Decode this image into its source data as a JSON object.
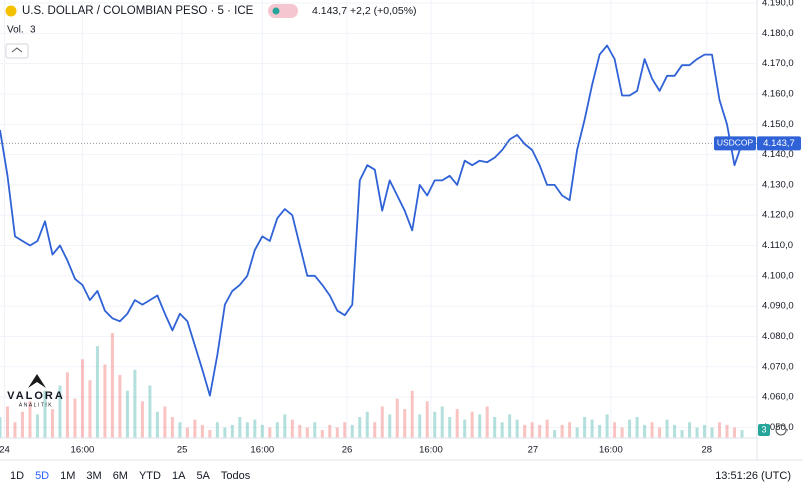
{
  "chart_data": {
    "type": "line",
    "title": "U.S. DOLLAR / COLOMBIAN PESO · 5 · ICE",
    "last": {
      "value": 4143.7,
      "label": "4.143,7"
    },
    "change": "+2,2 (+0,05%)",
    "series": [
      {
        "name": "USDCOP",
        "color": "#2f62d6",
        "values": [
          4148.1,
          4133,
          4113,
          4111.5,
          4110,
          4111.5,
          4118,
          4107,
          4110,
          4105,
          4099,
          4097,
          4092,
          4095,
          4088.5,
          4086,
          4085,
          4087.5,
          4092,
          4090.5,
          4092,
          4093.5,
          4087.5,
          4082,
          4087.5,
          4085,
          4077,
          4069,
          4060.5,
          4074,
          4090.5,
          4095,
          4097,
          4100,
          4108.5,
          4113,
          4111.5,
          4119,
          4122,
          4120,
          4110,
          4100,
          4100,
          4097,
          4093.5,
          4088.5,
          4087,
          4090.5,
          4131.5,
          4136.5,
          4135,
          4121.5,
          4131.5,
          4126.5,
          4121.5,
          4115,
          4130,
          4126.5,
          4131.5,
          4131.5,
          4133,
          4130,
          4138,
          4136.5,
          4138,
          4137.5,
          4139,
          4141.5,
          4145,
          4146.5,
          4143.5,
          4141.5,
          4136.5,
          4130,
          4130,
          4126.5,
          4125,
          4141.5,
          4151.5,
          4163,
          4173,
          4176,
          4171.5,
          4159.5,
          4159.5,
          4161,
          4171.5,
          4165,
          4161,
          4166,
          4166,
          4169.5,
          4169.5,
          4171.5,
          4173,
          4173,
          4158,
          4150,
          4136.5,
          4143.7
        ]
      }
    ],
    "volume": {
      "name": "Vol.",
      "values": [
        8,
        12,
        6,
        10,
        14,
        9,
        18,
        11,
        20,
        25,
        15,
        30,
        22,
        35,
        28,
        40,
        24,
        18,
        26,
        14,
        20,
        10,
        12,
        8,
        6,
        4,
        7,
        5,
        3,
        6,
        4,
        5,
        8,
        6,
        7,
        5,
        4,
        6,
        9,
        7,
        5,
        4,
        6,
        3,
        5,
        4,
        6,
        5,
        8,
        10,
        6,
        12,
        9,
        15,
        11,
        18,
        9,
        14,
        10,
        12,
        8,
        11,
        7,
        10,
        9,
        12,
        8,
        6,
        9,
        7,
        5,
        6,
        5,
        7,
        3,
        5,
        6,
        4,
        8,
        7,
        5,
        9,
        6,
        4,
        7,
        8,
        5,
        6,
        4,
        7,
        5,
        3,
        6,
        4,
        5,
        4,
        6,
        5,
        4,
        3
      ]
    },
    "xlim": [
      0,
      101
    ],
    "xticks": [
      {
        "value": 0.6,
        "label": "24"
      },
      {
        "value": 11,
        "label": "16:00"
      },
      {
        "value": 24.3,
        "label": "25"
      },
      {
        "value": 35,
        "label": "16:00"
      },
      {
        "value": 46.3,
        "label": "26"
      },
      {
        "value": 57.5,
        "label": "16:00"
      },
      {
        "value": 71.1,
        "label": "27"
      },
      {
        "value": 81.5,
        "label": "16:00"
      },
      {
        "value": 94.3,
        "label": "28"
      }
    ],
    "ylim": [
      4046.5,
      4191
    ],
    "yticks": [
      {
        "value": 4050,
        "label": "4.050,0"
      },
      {
        "value": 4060,
        "label": "4.060,0"
      },
      {
        "value": 4070,
        "label": "4.070,0"
      },
      {
        "value": 4080,
        "label": "4.080,0"
      },
      {
        "value": 4090,
        "label": "4.090,0"
      },
      {
        "value": 4100,
        "label": "4.100,0"
      },
      {
        "value": 4110,
        "label": "4.110,0"
      },
      {
        "value": 4120,
        "label": "4.120,0"
      },
      {
        "value": 4130,
        "label": "4.130,0"
      },
      {
        "value": 4140,
        "label": "4.140,0"
      },
      {
        "value": 4150,
        "label": "4.150,0"
      },
      {
        "value": 4160,
        "label": "4.160,0"
      },
      {
        "value": 4170,
        "label": "4.170,0"
      },
      {
        "value": 4180,
        "label": "4.180,0"
      },
      {
        "value": 4190,
        "label": "4.190,0"
      }
    ],
    "grid": true,
    "logo": {
      "name": "VALORA",
      "tagline": "ANALITIK"
    },
    "ranges": [
      "1D",
      "5D",
      "1M",
      "3M",
      "6M",
      "YTD",
      "1A",
      "5A",
      "Todos"
    ],
    "active_range": 1,
    "clock": "13:51:26 (UTC)"
  }
}
